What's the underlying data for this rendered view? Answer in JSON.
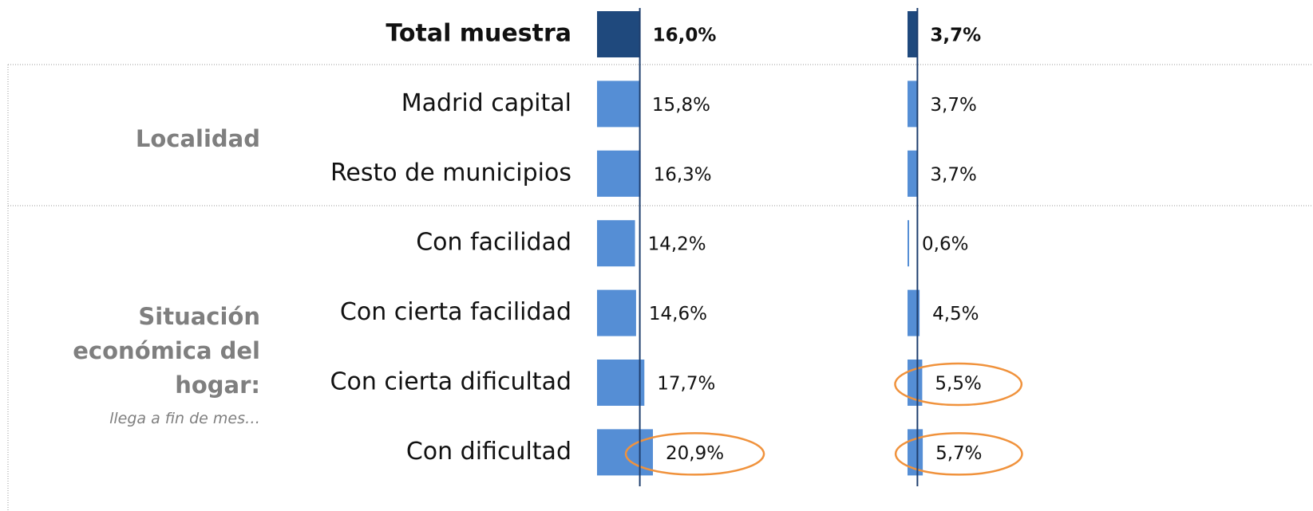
{
  "chart_data": {
    "type": "bar",
    "orientation": "horizontal",
    "groups": [
      {
        "categories": [
          "Total muestra"
        ]
      },
      {
        "label": "Localidad",
        "categories": [
          "Madrid capital",
          "Resto de municipios"
        ]
      },
      {
        "label": "Situación económica del hogar:",
        "note": "llega a fin de mes…",
        "categories": [
          "Con facilidad",
          "Con cierta facilidad",
          "Con cierta dificultad",
          "Con dificultad"
        ]
      }
    ],
    "xlim": [
      0,
      100
    ],
    "total_color": "#1f497d",
    "reference_color": "#1f3f6e",
    "highlight_color": "#f0923c",
    "series": [
      {
        "color": "#558ed5",
        "values": [
          16.0,
          15.8,
          16.3,
          14.2,
          14.6,
          17.7,
          20.9
        ],
        "value_labels": [
          "16,0%",
          "15,8%",
          "16,3%",
          "14,2%",
          "14,6%",
          "17,7%",
          "20,9%"
        ],
        "highlight": [
          false,
          false,
          false,
          false,
          false,
          false,
          true
        ]
      },
      {
        "color": "#558ed5",
        "values": [
          3.7,
          3.7,
          3.7,
          0.6,
          4.5,
          5.5,
          5.7
        ],
        "value_labels": [
          "3,7%",
          "3,7%",
          "3,7%",
          "0,6%",
          "4,5%",
          "5,5%",
          "5,7%"
        ],
        "highlight": [
          false,
          false,
          false,
          false,
          false,
          true,
          true
        ]
      }
    ]
  }
}
